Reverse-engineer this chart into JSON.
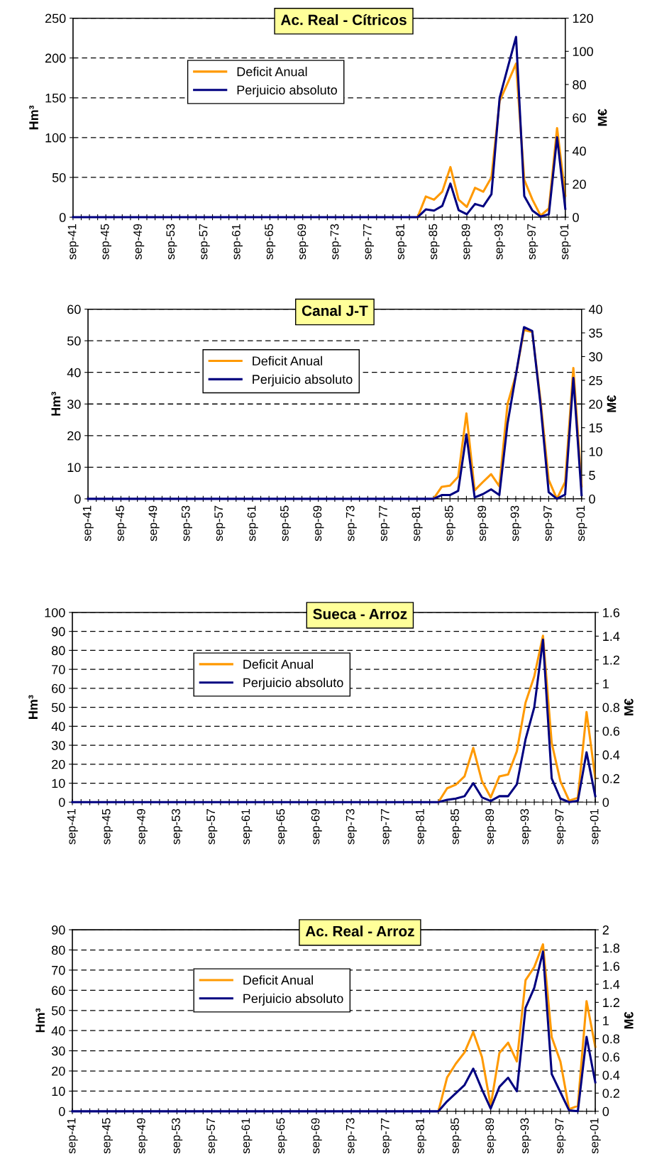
{
  "chart_data": [
    {
      "type": "line",
      "title": "Ac. Real - Cítricos",
      "ylabel": "Hm³",
      "y2label": "M€",
      "categories": [
        "sep-41",
        null,
        null,
        null,
        "sep-45",
        null,
        null,
        null,
        "sep-49",
        null,
        null,
        null,
        "sep-53",
        null,
        null,
        null,
        "sep-57",
        null,
        null,
        null,
        "sep-61",
        null,
        null,
        null,
        "sep-65",
        null,
        null,
        null,
        "sep-69",
        null,
        null,
        null,
        "sep-73",
        null,
        null,
        null,
        "sep-77",
        null,
        null,
        null,
        "sep-81",
        null,
        null,
        null,
        "sep-85",
        null,
        null,
        null,
        "sep-89",
        null,
        null,
        null,
        "sep-93",
        null,
        null,
        null,
        "sep-97",
        null,
        null,
        null,
        "sep-01"
      ],
      "series": [
        {
          "name": "Deficit Anual",
          "color": "#ff9900",
          "values": [
            null,
            null,
            null,
            null,
            null,
            null,
            null,
            null,
            null,
            null,
            null,
            null,
            null,
            null,
            null,
            null,
            null,
            null,
            null,
            null,
            null,
            null,
            null,
            null,
            null,
            null,
            null,
            null,
            null,
            null,
            null,
            null,
            null,
            null,
            null,
            null,
            null,
            null,
            null,
            null,
            null,
            null,
            0,
            26,
            22,
            32,
            63,
            22,
            13,
            37,
            32,
            50,
            146,
            169,
            193,
            47,
            22,
            2,
            11,
            112,
            27
          ]
        },
        {
          "name": "Perjuicio absoluto",
          "color": "#000080",
          "axis": "y2",
          "values": [
            0,
            0,
            0,
            0,
            0,
            0,
            0,
            0,
            0,
            0,
            0,
            0,
            0,
            0,
            0,
            0,
            0,
            0,
            0,
            0,
            0,
            0,
            0,
            0,
            0,
            0,
            0,
            0,
            0,
            0,
            0,
            0,
            0,
            0,
            0,
            0,
            0,
            0,
            0,
            0,
            0,
            0,
            0,
            4.7,
            4,
            6.8,
            20.3,
            4.3,
            1.8,
            8,
            6.5,
            13.9,
            72,
            90.5,
            108.7,
            12.8,
            4,
            0.4,
            1.8,
            48.2,
            5.1
          ]
        }
      ],
      "ylim": [
        0,
        250
      ],
      "yticks": [
        0,
        50,
        100,
        150,
        200,
        250
      ],
      "y2lim": [
        0,
        120
      ],
      "y2ticks": [
        0,
        20,
        40,
        60,
        80,
        100,
        120
      ],
      "grid": "y",
      "legend": "upper left",
      "line_style": "solid",
      "marker": "none"
    },
    {
      "type": "line",
      "title": "Canal J-T",
      "ylabel": "Hm³",
      "y2label": "M€",
      "categories": [
        "sep-41",
        null,
        null,
        null,
        "sep-45",
        null,
        null,
        null,
        "sep-49",
        null,
        null,
        null,
        "sep-53",
        null,
        null,
        null,
        "sep-57",
        null,
        null,
        null,
        "sep-61",
        null,
        null,
        null,
        "sep-65",
        null,
        null,
        null,
        "sep-69",
        null,
        null,
        null,
        "sep-73",
        null,
        null,
        null,
        "sep-77",
        null,
        null,
        null,
        "sep-81",
        null,
        null,
        null,
        "sep-85",
        null,
        null,
        null,
        "sep-89",
        null,
        null,
        null,
        "sep-93",
        null,
        null,
        null,
        "sep-97",
        null,
        null,
        null,
        "sep-01"
      ],
      "series": [
        {
          "name": "Deficit Anual",
          "color": "#ff9900",
          "values": [
            null,
            null,
            null,
            null,
            null,
            null,
            null,
            null,
            null,
            null,
            null,
            null,
            null,
            null,
            null,
            null,
            null,
            null,
            null,
            null,
            null,
            null,
            null,
            null,
            null,
            null,
            null,
            null,
            null,
            null,
            null,
            null,
            null,
            null,
            null,
            null,
            null,
            null,
            null,
            null,
            null,
            null,
            0,
            3.8,
            4.2,
            7,
            27,
            2.7,
            5.3,
            7.8,
            4,
            30,
            39,
            53.4,
            52.8,
            31.4,
            6,
            0,
            5.3,
            41.4,
            4
          ]
        },
        {
          "name": "Perjuicio absoluto",
          "color": "#000080",
          "axis": "y2",
          "values": [
            0,
            0,
            0,
            0,
            0,
            0,
            0,
            0,
            0,
            0,
            0,
            0,
            0,
            0,
            0,
            0,
            0,
            0,
            0,
            0,
            0,
            0,
            0,
            0,
            0,
            0,
            0,
            0,
            0,
            0,
            0,
            0,
            0,
            0,
            0,
            0,
            0,
            0,
            0,
            0,
            0,
            0,
            0,
            0.8,
            0.8,
            1.7,
            13.6,
            0.3,
            1,
            2,
            0.8,
            15.9,
            26,
            36.2,
            35.4,
            20,
            1.4,
            0,
            0.9,
            25.5,
            0.8
          ]
        }
      ],
      "ylim": [
        0,
        60
      ],
      "yticks": [
        0,
        10,
        20,
        30,
        40,
        50,
        60
      ],
      "y2lim": [
        0,
        40
      ],
      "y2ticks": [
        0,
        5,
        10,
        15,
        20,
        25,
        30,
        35,
        40
      ],
      "grid": "y",
      "legend": "upper left",
      "line_style": "solid",
      "marker": "none"
    },
    {
      "type": "line",
      "title": "Sueca - Arroz",
      "ylabel": "Hm³",
      "y2label": "M€",
      "categories": [
        "sep-41",
        null,
        null,
        null,
        "sep-45",
        null,
        null,
        null,
        "sep-49",
        null,
        null,
        null,
        "sep-53",
        null,
        null,
        null,
        "sep-57",
        null,
        null,
        null,
        "sep-61",
        null,
        null,
        null,
        "sep-65",
        null,
        null,
        null,
        "sep-69",
        null,
        null,
        null,
        "sep-73",
        null,
        null,
        null,
        "sep-77",
        null,
        null,
        null,
        "sep-81",
        null,
        null,
        null,
        "sep-85",
        null,
        null,
        null,
        "sep-89",
        null,
        null,
        null,
        "sep-93",
        null,
        null,
        null,
        "sep-97",
        null,
        null,
        null,
        "sep-01"
      ],
      "series": [
        {
          "name": "Deficit Anual",
          "color": "#ff9900",
          "values": [
            null,
            null,
            null,
            null,
            null,
            null,
            null,
            null,
            null,
            null,
            null,
            null,
            null,
            null,
            null,
            null,
            null,
            null,
            null,
            null,
            null,
            null,
            null,
            null,
            null,
            null,
            null,
            null,
            null,
            null,
            null,
            null,
            null,
            null,
            null,
            null,
            null,
            null,
            null,
            null,
            null,
            null,
            0,
            7.3,
            9.2,
            13.6,
            28.6,
            11,
            2.5,
            13.6,
            14.6,
            26.8,
            52.5,
            66.3,
            87.7,
            31.2,
            11,
            0.8,
            2.3,
            47.5,
            12.6
          ]
        },
        {
          "name": "Perjuicio absoluto",
          "color": "#000080",
          "axis": "y2",
          "values": [
            0,
            0,
            0,
            0,
            0,
            0,
            0,
            0,
            0,
            0,
            0,
            0,
            0,
            0,
            0,
            0,
            0,
            0,
            0,
            0,
            0,
            0,
            0,
            0,
            0,
            0,
            0,
            0,
            0,
            0,
            0,
            0,
            0,
            0,
            0,
            0,
            0,
            0,
            0,
            0,
            0,
            0,
            0,
            0.02,
            0.03,
            0.05,
            0.16,
            0.04,
            0.01,
            0.05,
            0.05,
            0.15,
            0.53,
            0.8,
            1.37,
            0.2,
            0.03,
            0,
            0.01,
            0.42,
            0.05
          ]
        }
      ],
      "ylim": [
        0,
        100
      ],
      "yticks": [
        0,
        10,
        20,
        30,
        40,
        50,
        60,
        70,
        80,
        90,
        100
      ],
      "y2lim": [
        0,
        1.6
      ],
      "y2ticks": [
        0,
        0.2,
        0.4,
        0.6,
        0.8,
        1,
        1.2,
        1.4,
        1.6
      ],
      "grid": "y",
      "legend": "upper left",
      "line_style": "solid",
      "marker": "none"
    },
    {
      "type": "line",
      "title": "Ac. Real - Arroz",
      "ylabel": "Hm³",
      "y2label": "M€",
      "categories": [
        "sep-41",
        null,
        null,
        null,
        "sep-45",
        null,
        null,
        null,
        "sep-49",
        null,
        null,
        null,
        "sep-53",
        null,
        null,
        null,
        "sep-57",
        null,
        null,
        null,
        "sep-61",
        null,
        null,
        null,
        "sep-65",
        null,
        null,
        null,
        "sep-69",
        null,
        null,
        null,
        "sep-73",
        null,
        null,
        null,
        "sep-77",
        null,
        null,
        null,
        "sep-81",
        null,
        null,
        null,
        "sep-85",
        null,
        null,
        null,
        "sep-89",
        null,
        null,
        null,
        "sep-93",
        null,
        null,
        null,
        "sep-97",
        null,
        null,
        null,
        "sep-01"
      ],
      "series": [
        {
          "name": "Deficit Anual",
          "color": "#ff9900",
          "values": [
            null,
            null,
            null,
            null,
            null,
            null,
            null,
            null,
            null,
            null,
            null,
            null,
            null,
            null,
            null,
            null,
            null,
            null,
            null,
            null,
            null,
            null,
            null,
            null,
            null,
            null,
            null,
            null,
            null,
            null,
            null,
            null,
            null,
            null,
            null,
            null,
            null,
            null,
            null,
            null,
            null,
            null,
            0,
            16.8,
            23.6,
            29.2,
            39.3,
            26.9,
            2.7,
            28.9,
            34,
            24.7,
            65,
            71.5,
            82.8,
            36.8,
            24.7,
            1,
            2.7,
            54.6,
            32
          ]
        },
        {
          "name": "Perjuicio absoluto",
          "color": "#000080",
          "axis": "y2",
          "values": [
            0,
            0,
            0,
            0,
            0,
            0,
            0,
            0,
            0,
            0,
            0,
            0,
            0,
            0,
            0,
            0,
            0,
            0,
            0,
            0,
            0,
            0,
            0,
            0,
            0,
            0,
            0,
            0,
            0,
            0,
            0,
            0,
            0,
            0,
            0,
            0,
            0,
            0,
            0,
            0,
            0,
            0,
            0,
            0.11,
            0.2,
            0.29,
            0.47,
            0.24,
            0.03,
            0.27,
            0.37,
            0.22,
            1.14,
            1.36,
            1.76,
            0.41,
            0.21,
            0.01,
            0,
            0.82,
            0.32
          ]
        }
      ],
      "ylim": [
        0,
        90
      ],
      "yticks": [
        0,
        10,
        20,
        30,
        40,
        50,
        60,
        70,
        80,
        90
      ],
      "y2lim": [
        0,
        2
      ],
      "y2ticks": [
        0,
        0.2,
        0.4,
        0.6,
        0.8,
        1,
        1.2,
        1.4,
        1.6,
        1.8,
        2
      ],
      "grid": "y",
      "legend": "upper left",
      "line_style": "solid",
      "marker": "none"
    }
  ]
}
